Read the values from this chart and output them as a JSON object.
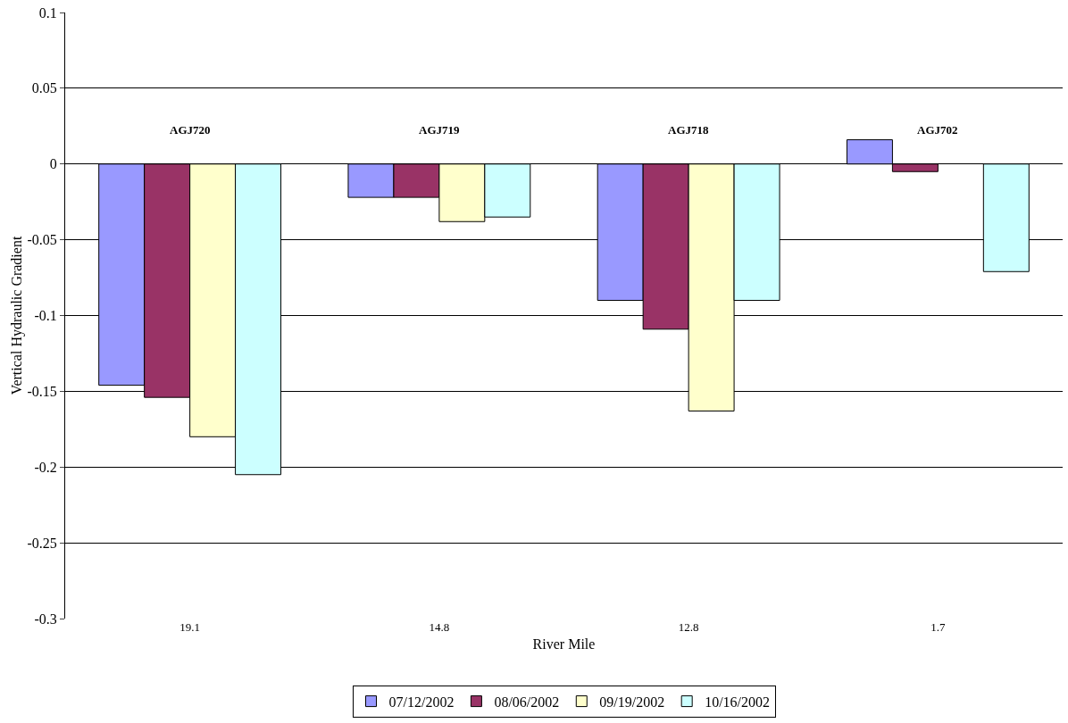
{
  "chart_data": {
    "type": "bar",
    "xlabel": "River Mile",
    "ylabel": "Vertical Hydraulic Gradient",
    "categories": [
      "19.1",
      "14.8",
      "12.8",
      "1.7"
    ],
    "series": [
      {
        "name": "07/12/2002",
        "color": "#9999ff",
        "values": [
          -0.146,
          -0.022,
          -0.09,
          0.016
        ]
      },
      {
        "name": "08/06/2002",
        "color": "#993366",
        "values": [
          -0.154,
          -0.022,
          -0.109,
          -0.005
        ]
      },
      {
        "name": "09/19/2002",
        "color": "#ffffcc",
        "values": [
          -0.18,
          -0.038,
          -0.163,
          null
        ]
      },
      {
        "name": "10/16/2002",
        "color": "#ccffff",
        "values": [
          -0.205,
          -0.035,
          -0.09,
          -0.071
        ]
      }
    ],
    "ylim": [
      -0.3,
      0.1
    ],
    "yticks": [
      -0.3,
      -0.25,
      -0.2,
      -0.15,
      -0.1,
      -0.05,
      0,
      0.05,
      0.1
    ],
    "annotations": [
      "AGJ720",
      "AGJ719",
      "AGJ718",
      "AGJ702"
    ],
    "grid": "y",
    "legend": "bottom"
  }
}
